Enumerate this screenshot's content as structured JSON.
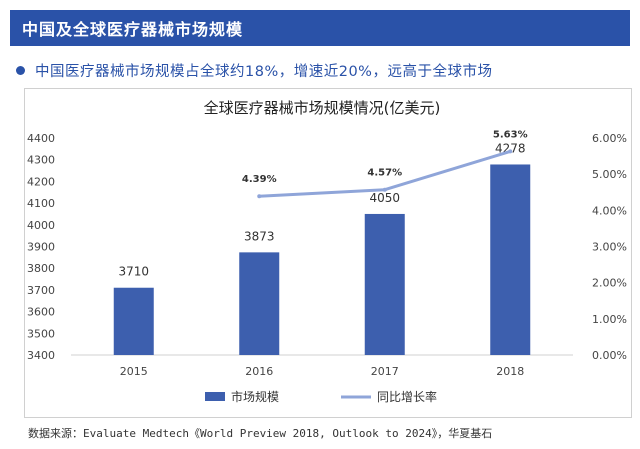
{
  "header": {
    "title": "中国及全球医疗器械市场规模"
  },
  "bullet": {
    "text": "中国医疗器械市场规模占全球约18%，增速近20%，远高于全球市场"
  },
  "source": {
    "text": "数据来源：Evaluate Medtech《World Preview 2018, Outlook to 2024》，华夏基石"
  },
  "colors": {
    "accent": "#2a52a8",
    "bar": "#3d5fae",
    "line": "#8fa5d9"
  },
  "chart_data": {
    "type": "bar",
    "title": "全球医疗器械市场规模情况(亿美元)",
    "categories": [
      "2015",
      "2016",
      "2017",
      "2018"
    ],
    "series": [
      {
        "name": "市场规模",
        "type": "bar",
        "axis": "left",
        "values": [
          3710,
          3873,
          4050,
          4278
        ],
        "labels": [
          "3710",
          "3873",
          "4050",
          "4278"
        ]
      },
      {
        "name": "同比增长率",
        "type": "line",
        "axis": "right",
        "values": [
          null,
          4.39,
          4.57,
          5.63
        ],
        "labels": [
          "",
          "4.39%",
          "4.57%",
          "5.63%"
        ]
      }
    ],
    "ylim": [
      3400,
      4400
    ],
    "yticks": [
      "3400",
      "3500",
      "3600",
      "3700",
      "3800",
      "3900",
      "4000",
      "4100",
      "4200",
      "4300",
      "4400"
    ],
    "y2lim": [
      0,
      6
    ],
    "y2ticks": [
      "0.00%",
      "1.00%",
      "2.00%",
      "3.00%",
      "4.00%",
      "5.00%",
      "6.00%"
    ],
    "legend_position": "bottom",
    "grid": false
  }
}
